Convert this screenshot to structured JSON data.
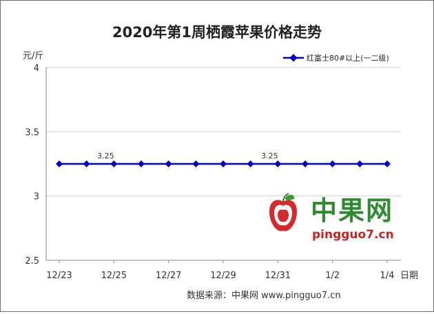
{
  "chart_data": {
    "type": "line",
    "title": "2020年第1周栖霞苹果价格走势",
    "ylabel": "元/斤",
    "xlabel": "日期",
    "ylim": [
      2.5,
      4
    ],
    "y_ticks": [
      "2.5",
      "3",
      "3.5",
      "4"
    ],
    "x_tick_labels": [
      "12/23",
      "12/25",
      "12/27",
      "12/29",
      "12/31",
      "1/2",
      "1/4"
    ],
    "x": [
      "12/23",
      "12/24",
      "12/25",
      "12/26",
      "12/27",
      "12/28",
      "12/29",
      "12/30",
      "12/31",
      "1/1",
      "1/2",
      "1/3",
      "1/4"
    ],
    "series": [
      {
        "name": "红富士80#以上(一二级)",
        "color": "#0000cc",
        "values": [
          3.25,
          3.25,
          3.25,
          3.25,
          3.25,
          3.25,
          3.25,
          3.25,
          3.25,
          3.25,
          3.25,
          3.25,
          3.25
        ]
      }
    ],
    "data_labels": [
      {
        "index": 2,
        "text": "3.25"
      },
      {
        "index": 8,
        "text": "3.25"
      }
    ],
    "legend": "top-right",
    "grid": true
  },
  "watermark": {
    "brand": "中果网",
    "url": "pingguo7.cn",
    "brand_color": "#2e8b2e",
    "url_color": "#cc2222",
    "icon": "apple-logo-icon"
  },
  "footer": {
    "source": "数据来源：中果网 www.pingguo7.cn"
  }
}
